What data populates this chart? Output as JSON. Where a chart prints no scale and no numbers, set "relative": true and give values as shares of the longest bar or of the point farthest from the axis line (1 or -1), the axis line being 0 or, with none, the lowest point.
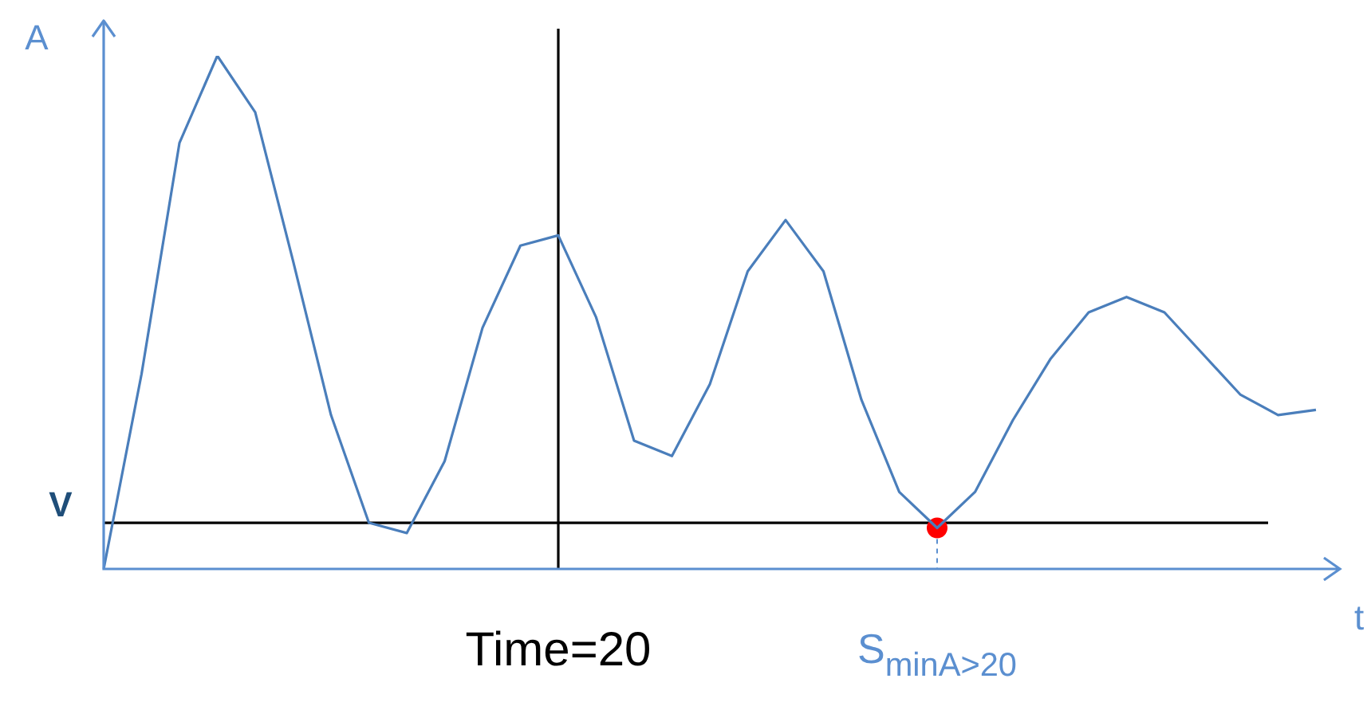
{
  "chart_data": {
    "type": "line",
    "relative": true,
    "xlabel": "t",
    "ylabel": "A",
    "categories": [
      null,
      null,
      null,
      null,
      null,
      null,
      null,
      null,
      null,
      null,
      null,
      null,
      "Time=20",
      null,
      null,
      null,
      null,
      null,
      null,
      null,
      null,
      null,
      "S$_{minA>20}$",
      null,
      null,
      null,
      null,
      null,
      null,
      null,
      null,
      null,
      null
    ],
    "series": [
      {
        "color": "#4a7ebb",
        "values": [
          0,
          0.38,
          0.83,
          1,
          0.89,
          0.6,
          0.3,
          0.09,
          0.07,
          0.21,
          0.47,
          0.63,
          0.65,
          0.49,
          0.25,
          0.22,
          0.36,
          0.58,
          0.68,
          0.58,
          0.33,
          0.15,
          0.08,
          0.15,
          0.29,
          0.41,
          0.5,
          0.53,
          0.5,
          0.42,
          0.34,
          0.3,
          0.31
        ]
      },
      {
        "type": "scatter",
        "color": "#ff0000",
        "x": [
          "S$_{minA>20}$"
        ],
        "values": [
          0.08
        ],
        "marker": "circle"
      }
    ],
    "ref_lines": [
      {
        "axis": "y",
        "value": 0.09,
        "label": "V",
        "color": "#000000"
      },
      {
        "axis": "x",
        "value": "Time=20",
        "color": "#000000"
      }
    ],
    "marker": "none",
    "legend": false
  }
}
